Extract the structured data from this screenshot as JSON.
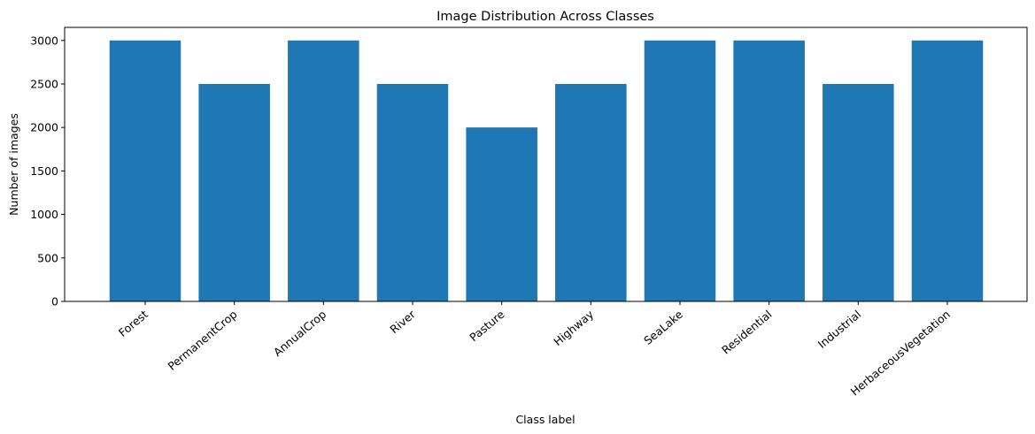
{
  "chart_data": {
    "type": "bar",
    "title": "Image Distribution Across Classes",
    "xlabel": "Class label",
    "ylabel": "Number of images",
    "categories": [
      "Forest",
      "PermanentCrop",
      "AnnualCrop",
      "River",
      "Pasture",
      "Highway",
      "SeaLake",
      "Residential",
      "Industrial",
      "HerbaceousVegetation"
    ],
    "values": [
      3000,
      2500,
      3000,
      2500,
      2000,
      2500,
      3000,
      3000,
      2500,
      3000
    ],
    "ylim": [
      0,
      3150
    ],
    "yticks": [
      0,
      500,
      1000,
      1500,
      2000,
      2500,
      3000
    ],
    "bar_color": "#1f77b4",
    "grid": false,
    "legend": "none"
  }
}
